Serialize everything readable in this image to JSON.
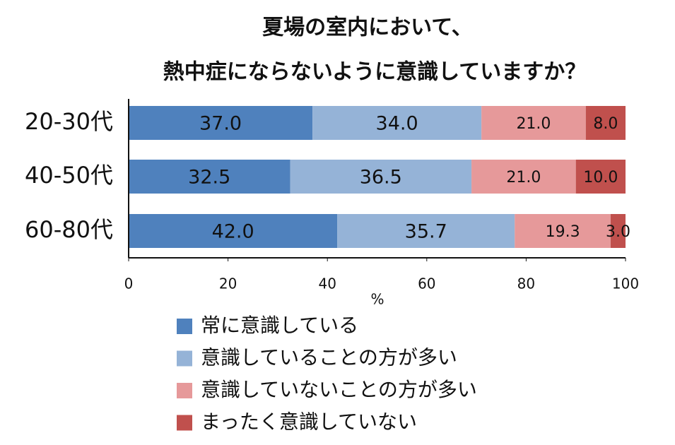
{
  "chart_data": {
    "type": "stacked-barh",
    "title": [
      "夏場の室内において、",
      "熱中症にならないように意識していますか？"
    ],
    "categories": [
      "20-30代",
      "40-50代",
      "60-80代"
    ],
    "series": [
      {
        "name": "常に意識している",
        "color": "#4f81bd",
        "values": [
          37.0,
          32.5,
          42.0
        ],
        "value_labels": [
          "37.0",
          "32.5",
          "42.0"
        ]
      },
      {
        "name": "意識していることの方が多い",
        "color": "#95b3d7",
        "values": [
          34.0,
          36.5,
          35.7
        ],
        "value_labels": [
          "34.0",
          "36.5",
          "35.7"
        ]
      },
      {
        "name": "意識していないことの方が多い",
        "color": "#e6999a",
        "values": [
          21.0,
          21.0,
          19.3
        ],
        "value_labels": [
          "21.0",
          "21.0",
          "19.3"
        ]
      },
      {
        "name": "まったく意識していない",
        "color": "#c0504d",
        "values": [
          8.0,
          10.0,
          3.0
        ],
        "value_labels": [
          "8.0",
          "10.0",
          "3.0"
        ]
      }
    ],
    "xlabel": "%",
    "xlim": [
      0,
      100
    ],
    "xticks": [
      0,
      20,
      40,
      60,
      80,
      100
    ]
  }
}
